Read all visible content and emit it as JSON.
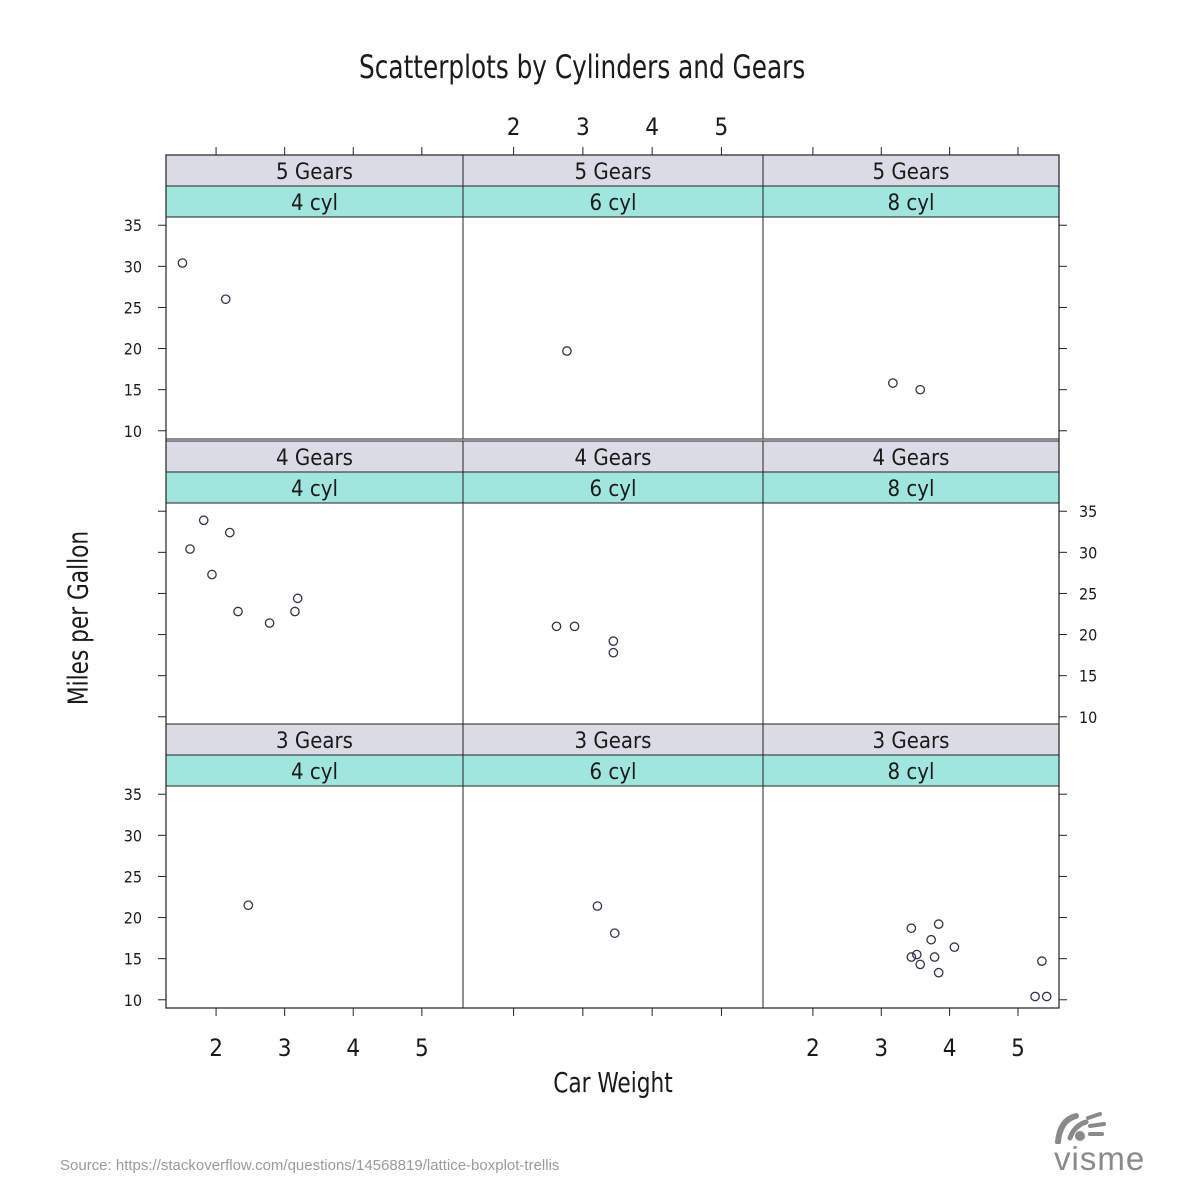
{
  "chart_data": {
    "type": "scatter",
    "title": "Scatterplots by Cylinders and Gears",
    "xlabel": "Car Weight",
    "ylabel": "Miles per Gallon",
    "xlim": [
      1.27,
      5.6
    ],
    "ylim": [
      9,
      36
    ],
    "x_ticks": [
      "2",
      "3",
      "4",
      "5"
    ],
    "y_ticks": [
      "10",
      "15",
      "20",
      "25",
      "30",
      "35"
    ],
    "layout": {
      "columns": [
        "4 cyl",
        "6 cyl",
        "8 cyl"
      ],
      "rows": [
        "5 Gears",
        "4 Gears",
        "3 Gears"
      ]
    },
    "panels": [
      {
        "gears": "5 Gears",
        "cyl": "4 cyl",
        "points": [
          [
            1.51,
            30.4
          ],
          [
            2.14,
            26.0
          ]
        ]
      },
      {
        "gears": "5 Gears",
        "cyl": "6 cyl",
        "points": [
          [
            2.77,
            19.7
          ]
        ]
      },
      {
        "gears": "5 Gears",
        "cyl": "8 cyl",
        "points": [
          [
            3.17,
            15.8
          ],
          [
            3.57,
            15.0
          ]
        ]
      },
      {
        "gears": "4 Gears",
        "cyl": "4 cyl",
        "points": [
          [
            1.82,
            33.9
          ],
          [
            1.62,
            30.4
          ],
          [
            2.2,
            32.4
          ],
          [
            1.94,
            27.3
          ],
          [
            2.32,
            22.8
          ],
          [
            2.78,
            21.4
          ],
          [
            3.15,
            22.8
          ],
          [
            3.19,
            24.4
          ]
        ]
      },
      {
        "gears": "4 Gears",
        "cyl": "6 cyl",
        "points": [
          [
            2.62,
            21.0
          ],
          [
            2.88,
            21.0
          ],
          [
            3.44,
            19.2
          ],
          [
            3.44,
            17.8
          ]
        ]
      },
      {
        "gears": "4 Gears",
        "cyl": "8 cyl",
        "points": []
      },
      {
        "gears": "3 Gears",
        "cyl": "4 cyl",
        "points": [
          [
            2.47,
            21.5
          ]
        ]
      },
      {
        "gears": "3 Gears",
        "cyl": "6 cyl",
        "points": [
          [
            3.21,
            21.4
          ],
          [
            3.46,
            18.1
          ]
        ]
      },
      {
        "gears": "3 Gears",
        "cyl": "8 cyl",
        "points": [
          [
            3.44,
            18.7
          ],
          [
            3.84,
            19.2
          ],
          [
            3.73,
            17.3
          ],
          [
            4.07,
            16.4
          ],
          [
            3.52,
            15.5
          ],
          [
            3.78,
            15.2
          ],
          [
            3.44,
            15.2
          ],
          [
            3.57,
            14.3
          ],
          [
            3.84,
            13.3
          ],
          [
            5.35,
            14.7
          ],
          [
            5.25,
            10.4
          ],
          [
            5.42,
            10.4
          ]
        ]
      }
    ]
  },
  "source": "Source: https://stackoverflow.com/questions/14568819/lattice-boxplot-trellis",
  "logo": {
    "name": "visme",
    "registered": "®"
  },
  "colors": {
    "gears_strip": "#dadbe4",
    "cyl_strip": "#a0e6de",
    "point": "#33334a",
    "axis": "#222222"
  }
}
